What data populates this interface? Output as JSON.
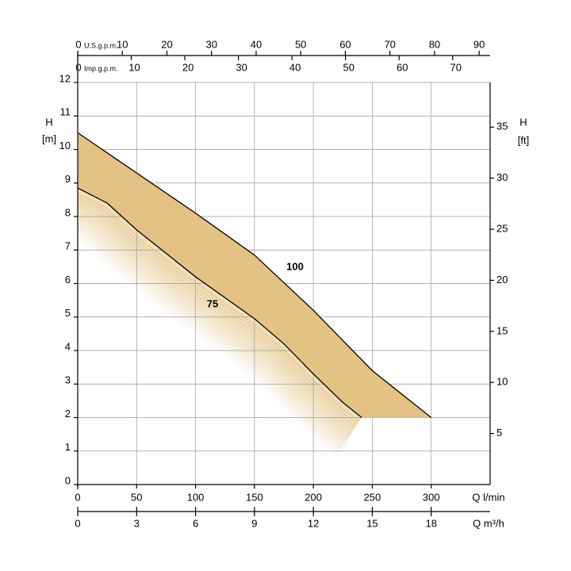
{
  "chart_data": {
    "type": "line",
    "xlabel": "Q  l/min",
    "xlim": [
      0,
      350
    ],
    "xticks": [
      0,
      50,
      100,
      150,
      200,
      250,
      300
    ],
    "x2": {
      "label": "Q  m³/h",
      "lim": [
        0,
        21
      ],
      "ticks": [
        0,
        3,
        6,
        9,
        12,
        15,
        18
      ]
    },
    "top_axes": [
      {
        "label": "U.S.g.p.m.",
        "lim": [
          0,
          92.46
        ],
        "ticks": [
          0,
          10,
          20,
          30,
          40,
          50,
          60,
          70,
          80,
          90
        ]
      },
      {
        "label": "Imp.g.p.m.",
        "lim": [
          0,
          76.99
        ],
        "ticks": [
          0,
          10,
          20,
          30,
          40,
          50,
          60,
          70
        ]
      }
    ],
    "ylabel": "H",
    "yunit": "[m]",
    "ylim": [
      0,
      12
    ],
    "yticks": [
      0,
      1,
      2,
      3,
      4,
      5,
      6,
      7,
      8,
      9,
      10,
      11,
      12
    ],
    "y2label": "H",
    "y2unit": "[ft]",
    "y2lim": [
      0,
      39.37
    ],
    "y2ticks": [
      5,
      10,
      15,
      20,
      25,
      30,
      35
    ],
    "grid": true,
    "fill_color": "#e3c283",
    "series": [
      {
        "name": "100",
        "color": "#000000",
        "x": [
          0,
          50,
          100,
          150,
          200,
          250,
          300
        ],
        "values": [
          10.5,
          9.3,
          8.1,
          6.85,
          5.2,
          3.4,
          2
        ]
      },
      {
        "name": "75",
        "color": "#000000",
        "x": [
          0,
          25,
          50,
          100,
          150,
          175,
          200,
          225,
          241
        ],
        "values": [
          8.85,
          8.4,
          7.6,
          6.2,
          4.95,
          4.2,
          3.3,
          2.45,
          2
        ]
      }
    ]
  }
}
